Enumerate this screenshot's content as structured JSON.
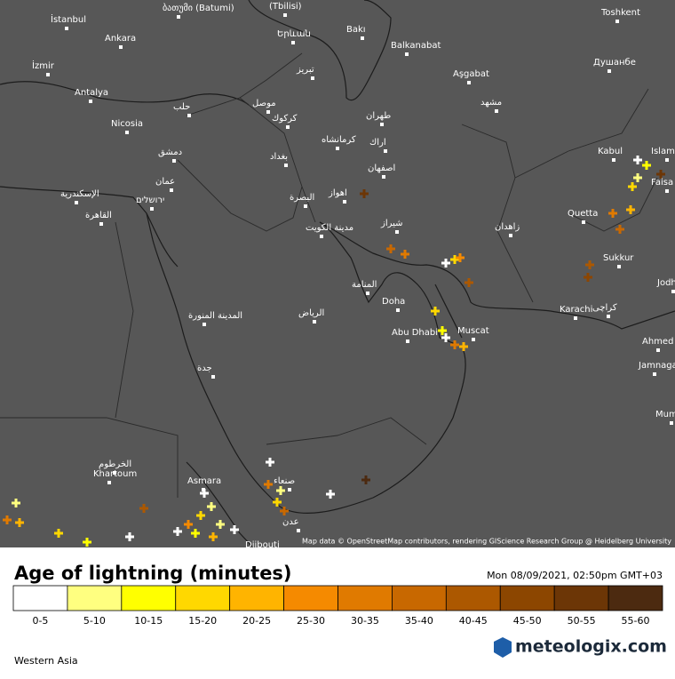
{
  "map": {
    "labels": [
      "İstanbul",
      "Ankara",
      "İzmir",
      "Antalya",
      "Nicosia",
      "ბათუმი (Batumi)",
      "(Tbilisi)",
      "Երևան",
      "Bakı",
      "Balkanabat",
      "Aşgabat",
      "Toshkent",
      "Душанбе",
      "حلب",
      "موصل",
      "تبريز",
      "طهران",
      "مشهد",
      "كركوك",
      "كرمانشاه",
      "اراك",
      "دمشق",
      "بغداد",
      "اصفهان",
      "Kabul",
      "Islam",
      "عمان",
      "الإسكندرية",
      "ירושלים",
      "البصرة",
      "اهواز",
      "القاهرة",
      "مدينة الكويت",
      "شيراز",
      "زاهدان",
      "Quetta",
      "Faisa",
      "Sukkur",
      "المنامة",
      "Doha",
      "Jodh",
      "Karachi",
      "كراچى",
      "المدينة المنورة",
      "الرياض",
      "Abu Dhabi",
      "Muscat",
      "Ahmed",
      "Jamnaga",
      "جدة",
      "Mum",
      "الخرطوم",
      "Khartoum",
      "Asmara",
      "صنعاء",
      "عدن",
      "Djibouti"
    ],
    "attribution": "Map data © OpenStreetMap contributors, rendering GIScience Research Group @ Heidelberg University"
  },
  "legend": {
    "title": "Age of lightning (minutes)",
    "date": "Mon 08/09/2021, 02:50pm GMT+03",
    "bins": [
      {
        "label": "0-5",
        "color": "#ffffff"
      },
      {
        "label": "5-10",
        "color": "#ffff80"
      },
      {
        "label": "10-15",
        "color": "#ffff00"
      },
      {
        "label": "15-20",
        "color": "#ffd800"
      },
      {
        "label": "20-25",
        "color": "#ffb400"
      },
      {
        "label": "25-30",
        "color": "#f58a00"
      },
      {
        "label": "30-35",
        "color": "#e07a00"
      },
      {
        "label": "35-40",
        "color": "#c86800"
      },
      {
        "label": "40-45",
        "color": "#ac5800"
      },
      {
        "label": "45-50",
        "color": "#8c4600"
      },
      {
        "label": "50-55",
        "color": "#6c3606"
      },
      {
        "label": "55-60",
        "color": "#4c2a10"
      }
    ]
  },
  "footer": {
    "region": "Western Asia",
    "brand": "meteologix.com"
  }
}
